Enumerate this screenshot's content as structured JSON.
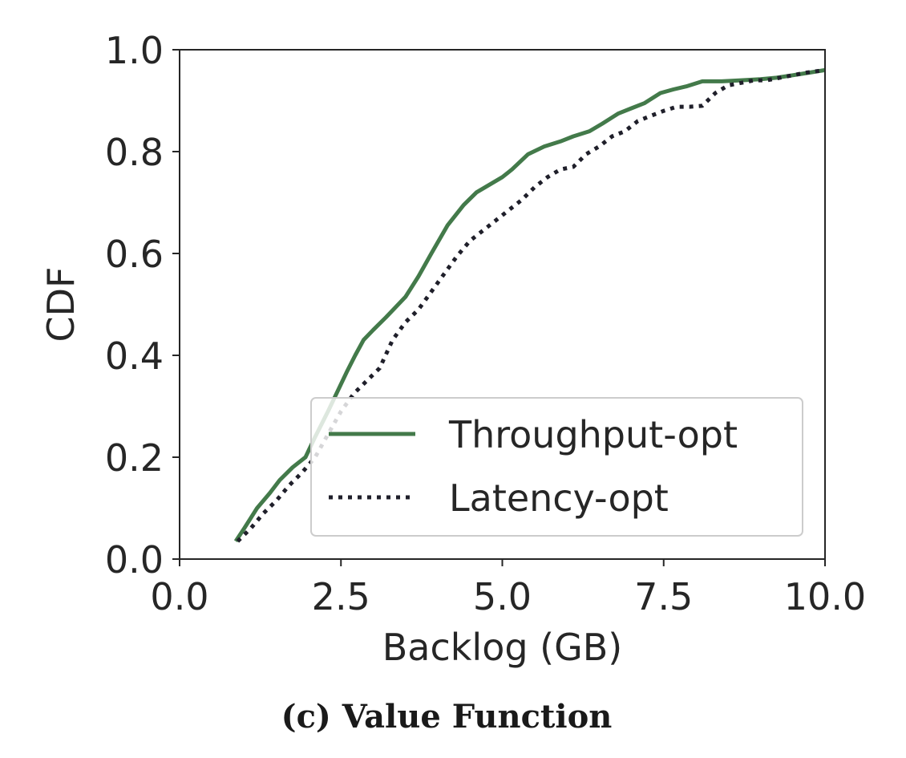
{
  "chart_data": {
    "type": "line",
    "caption": "(c) Value Function",
    "xlabel": "Backlog (GB)",
    "ylabel": "CDF",
    "xlim": [
      0,
      10
    ],
    "ylim": [
      0,
      1
    ],
    "xticks": [
      0,
      2.5,
      5,
      7.5,
      10
    ],
    "xtick_labels": [
      "0.0",
      "2.5",
      "5.0",
      "7.5",
      "10.0"
    ],
    "yticks": [
      0,
      0.2,
      0.4,
      0.6,
      0.8,
      1.0
    ],
    "ytick_labels": [
      "0.0",
      "0.2",
      "0.4",
      "0.6",
      "0.8",
      "1.0"
    ],
    "grid": false,
    "legend_position": "lower-right",
    "series": [
      {
        "name": "Throughput-opt",
        "color": "#437a4a",
        "style": "solid",
        "x": [
          0.87,
          1.0,
          1.2,
          1.4,
          1.55,
          1.75,
          1.95,
          2.1,
          2.3,
          2.45,
          2.6,
          2.72,
          2.85,
          3.0,
          3.2,
          3.5,
          3.7,
          3.9,
          4.15,
          4.4,
          4.6,
          4.8,
          5.0,
          5.15,
          5.4,
          5.65,
          5.9,
          6.1,
          6.35,
          6.55,
          6.8,
          7.0,
          7.2,
          7.45,
          7.65,
          7.85,
          8.1,
          8.4,
          8.7,
          9.0,
          9.25,
          9.5,
          9.75,
          10.0
        ],
        "y": [
          0.035,
          0.06,
          0.1,
          0.13,
          0.155,
          0.18,
          0.2,
          0.24,
          0.29,
          0.33,
          0.37,
          0.4,
          0.43,
          0.45,
          0.475,
          0.515,
          0.555,
          0.6,
          0.655,
          0.695,
          0.72,
          0.735,
          0.75,
          0.765,
          0.795,
          0.81,
          0.82,
          0.83,
          0.84,
          0.855,
          0.875,
          0.885,
          0.895,
          0.915,
          0.922,
          0.928,
          0.938,
          0.938,
          0.94,
          0.942,
          0.945,
          0.95,
          0.955,
          0.96
        ]
      },
      {
        "name": "Latency-opt",
        "color": "#1f1f2a",
        "style": "dotted",
        "x": [
          0.9,
          1.1,
          1.3,
          1.5,
          1.7,
          1.9,
          2.1,
          2.3,
          2.5,
          2.7,
          2.9,
          3.1,
          3.3,
          3.5,
          3.7,
          3.9,
          4.1,
          4.3,
          4.5,
          4.7,
          4.9,
          5.1,
          5.3,
          5.5,
          5.7,
          5.9,
          6.1,
          6.3,
          6.5,
          6.7,
          6.9,
          7.1,
          7.3,
          7.5,
          7.7,
          7.9,
          8.1,
          8.3,
          8.5,
          8.7,
          8.9,
          9.1,
          9.3,
          9.5,
          9.7,
          10.0
        ],
        "y": [
          0.035,
          0.06,
          0.09,
          0.115,
          0.145,
          0.17,
          0.2,
          0.245,
          0.29,
          0.325,
          0.35,
          0.375,
          0.43,
          0.465,
          0.49,
          0.525,
          0.56,
          0.595,
          0.625,
          0.645,
          0.665,
          0.685,
          0.705,
          0.73,
          0.75,
          0.765,
          0.77,
          0.795,
          0.81,
          0.83,
          0.84,
          0.86,
          0.87,
          0.88,
          0.888,
          0.888,
          0.89,
          0.915,
          0.93,
          0.935,
          0.94,
          0.94,
          0.945,
          0.95,
          0.955,
          0.96
        ]
      }
    ]
  }
}
